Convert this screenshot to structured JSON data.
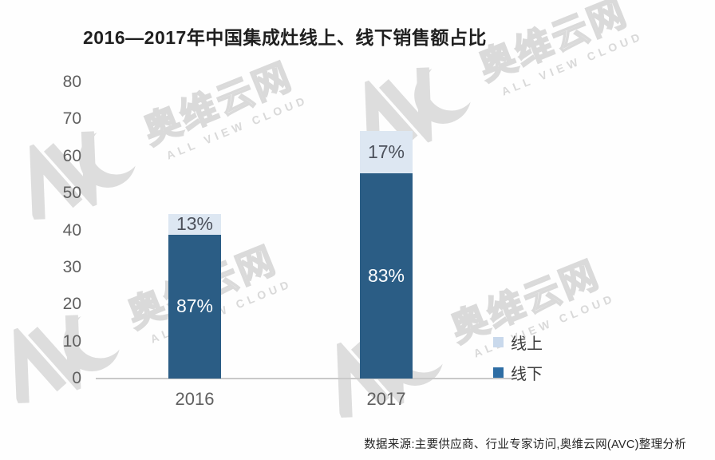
{
  "title": "2016—2017年中国集成灶线上、线下销售额占比",
  "source_note": "数据来源:主要供应商、行业专家访问,奥维云网(AVC)整理分析",
  "watermark": {
    "brand": "AVC",
    "brand_cn": "奥维云网",
    "caption": "ALL VIEW CLOUD"
  },
  "chart_data": {
    "type": "bar",
    "stacked": true,
    "title": "2016—2017年中国集成灶线上、线下销售额占比",
    "categories": [
      "2016",
      "2017"
    ],
    "series": [
      {
        "name": "线下",
        "color": "#2b5d85",
        "values": [
          38.9,
          55.5
        ],
        "labels": [
          "87%",
          "83%"
        ]
      },
      {
        "name": "线上",
        "color": "#dde7f2",
        "values": [
          5.6,
          11.4
        ],
        "labels": [
          "13%",
          "17%"
        ]
      }
    ],
    "yticks": [
      0,
      10,
      20,
      30,
      40,
      50,
      60,
      70,
      80
    ],
    "ylim": [
      0,
      80
    ],
    "xlabel": "",
    "ylabel": "",
    "grid": false,
    "legend_position": "right-bottom",
    "legend": [
      {
        "label": "线上",
        "swatch": "#c9d9ec"
      },
      {
        "label": "线下",
        "swatch": "#2e6da4"
      }
    ]
  }
}
